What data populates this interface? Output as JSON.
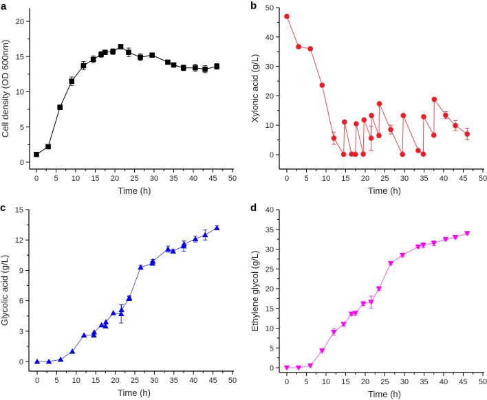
{
  "chart_data": [
    {
      "id": "a",
      "letter": "a",
      "type": "line",
      "title": "",
      "xlabel": "Time (h)",
      "ylabel": "Cell density (OD 600nm)",
      "xlim": [
        0,
        50
      ],
      "ylim": [
        -1,
        22
      ],
      "xticks": [
        0,
        5,
        10,
        15,
        20,
        25,
        30,
        35,
        40,
        45,
        50
      ],
      "yticks": [
        0,
        5,
        10,
        15,
        20
      ],
      "color": "#000000",
      "line_color": "#000000",
      "marker": "square",
      "series": [
        {
          "name": "Cell density",
          "x": [
            0,
            3,
            6,
            9,
            12,
            14.5,
            16.5,
            17.5,
            19.5,
            21.5,
            23.5,
            26.5,
            29.5,
            33.5,
            35,
            37.5,
            40.5,
            43,
            46
          ],
          "y": [
            1.1,
            2.2,
            7.8,
            11.5,
            13.7,
            14.6,
            15.3,
            15.6,
            15.7,
            16.4,
            15.6,
            14.9,
            15.2,
            14.2,
            13.8,
            13.4,
            13.4,
            13.2,
            13.6
          ],
          "err": [
            0.1,
            0.2,
            0.3,
            0.6,
            0.6,
            0.5,
            0.4,
            0.3,
            0.4,
            0.2,
            0.6,
            0.5,
            0.2,
            0.2,
            0.2,
            0.4,
            0.5,
            0.5,
            0.4
          ]
        }
      ]
    },
    {
      "id": "b",
      "letter": "b",
      "type": "line",
      "title": "",
      "xlabel": "Time (h)",
      "ylabel": "Xylonic acid (g/L)",
      "xlim": [
        0,
        50
      ],
      "ylim": [
        -5,
        50
      ],
      "xticks": [
        0,
        5,
        10,
        15,
        20,
        25,
        30,
        35,
        40,
        45,
        50
      ],
      "yticks": [
        0,
        10,
        20,
        30,
        40,
        50
      ],
      "color": "#ee1c25",
      "line_color": "#f04a50",
      "marker": "circle",
      "series": [
        {
          "name": "Xylonic acid",
          "x": [
            0,
            3,
            6,
            9,
            12,
            14.5,
            14.7,
            16.5,
            17.5,
            17.7,
            19.5,
            19.7,
            21.5,
            21.6,
            23.5,
            23.6,
            26.5,
            29.5,
            29.7,
            33.5,
            34.8,
            34.9,
            37.5,
            37.6,
            40.5,
            43,
            46
          ],
          "y": [
            47,
            36.7,
            36,
            23.6,
            5.6,
            0.1,
            11.1,
            0.2,
            0.1,
            10.5,
            0.2,
            11.8,
            5.6,
            13.3,
            6.5,
            17.3,
            8.5,
            0.1,
            13.3,
            1.4,
            0.2,
            12.9,
            6.6,
            18.8,
            13.4,
            9.9,
            7.0
          ],
          "err": [
            0.3,
            0.6,
            0.3,
            0.3,
            2.1,
            0.2,
            0.3,
            0.2,
            0.2,
            0.3,
            0.2,
            0.3,
            4.1,
            0.6,
            0.7,
            0.4,
            1.5,
            0.2,
            0.3,
            0.3,
            0.2,
            0.3,
            0.3,
            0.4,
            1.2,
            1.7,
            2.0
          ]
        }
      ]
    },
    {
      "id": "c",
      "letter": "c",
      "type": "line",
      "title": "",
      "xlabel": "Time (h)",
      "ylabel": "Glycolic acid (g/L)",
      "xlim": [
        0,
        50
      ],
      "ylim": [
        -1,
        15
      ],
      "xticks": [
        0,
        5,
        10,
        15,
        20,
        25,
        30,
        35,
        40,
        45,
        50
      ],
      "yticks": [
        0,
        3,
        6,
        9,
        12,
        15
      ],
      "color": "#0000ee",
      "line_color": "#5a5af0",
      "marker": "triangle-up",
      "series": [
        {
          "name": "Glycolic acid",
          "x": [
            0,
            3,
            6,
            9,
            12,
            14.5,
            14.6,
            16.5,
            17.5,
            17.6,
            19.5,
            21.5,
            21.6,
            23.5,
            23.6,
            26.5,
            29.5,
            29.6,
            33.5,
            34.8,
            37.5,
            37.6,
            40.5,
            43,
            46
          ],
          "y": [
            0,
            0,
            0.2,
            1.0,
            2.6,
            2.6,
            2.9,
            3.6,
            3.5,
            3.9,
            4.8,
            4.7,
            5.1,
            6.2,
            6.3,
            9.3,
            9.7,
            9.9,
            11.1,
            10.9,
            11.4,
            11.6,
            12.1,
            12.5,
            13.2
          ],
          "err": [
            0.05,
            0.05,
            0.1,
            0.1,
            0.1,
            0.1,
            0.1,
            0.1,
            0.1,
            0.1,
            0.1,
            0.9,
            0.5,
            0.2,
            0.2,
            0.2,
            0.2,
            0.2,
            0.3,
            0.2,
            0.5,
            0.3,
            0.3,
            0.5,
            0.2
          ]
        }
      ]
    },
    {
      "id": "d",
      "letter": "d",
      "type": "line",
      "title": "",
      "xlabel": "Time (h)",
      "ylabel": "Ethylene glycol (g/L)",
      "xlim": [
        0,
        50
      ],
      "ylim": [
        -1,
        40
      ],
      "xticks": [
        0,
        5,
        10,
        15,
        20,
        25,
        30,
        35,
        40,
        45,
        50
      ],
      "yticks": [
        0,
        5,
        10,
        15,
        20,
        25,
        30,
        35,
        40
      ],
      "color": "#ff00ff",
      "line_color": "#f060f0",
      "marker": "triangle-down",
      "series": [
        {
          "name": "Ethylene glycol",
          "x": [
            0,
            3,
            6,
            9,
            12,
            14.5,
            16.5,
            17.5,
            19.5,
            21.5,
            23.5,
            26.5,
            29.5,
            33.5,
            34.8,
            37.5,
            40.5,
            43,
            46
          ],
          "y": [
            0,
            0,
            0.5,
            4.3,
            9.0,
            11.0,
            13.6,
            13.8,
            16.2,
            16.6,
            20.0,
            26.4,
            28.5,
            30.6,
            31.0,
            31.5,
            32.5,
            33.0,
            34.0
          ],
          "err": [
            0.1,
            0.1,
            0.2,
            0.3,
            0.8,
            0.5,
            0.3,
            0.5,
            0.5,
            1.5,
            0.5,
            0.3,
            0.5,
            0.3,
            0.6,
            0.6,
            0.3,
            0.3,
            0.3
          ]
        }
      ]
    }
  ]
}
